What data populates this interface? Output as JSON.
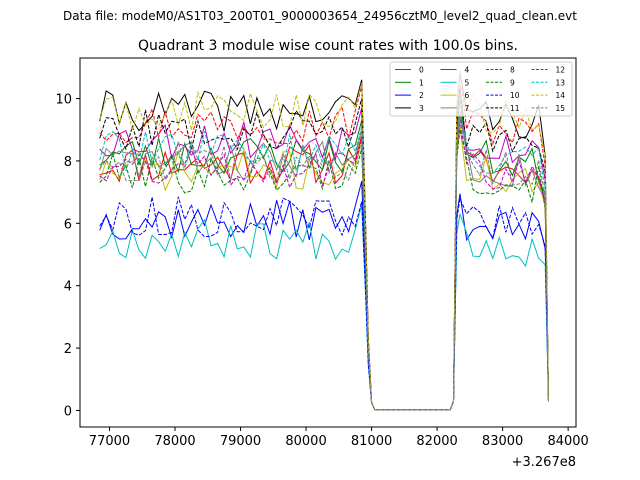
{
  "figure": {
    "supertitle": "Data file: modeM0/AS1T03_200T01_9000003654_24956cztM0_level2_quad_clean.evt"
  },
  "chart_data": {
    "type": "line",
    "title": "Quadrant 3 module wise count rates with 100.0s bins.",
    "xlabel": "",
    "ylabel": "",
    "x_offset_label": "+3.267e8",
    "xlim": [
      76550,
      84120
    ],
    "ylim": [
      -0.53,
      11.3
    ],
    "xticks": [
      77000,
      78000,
      79000,
      80000,
      81000,
      82000,
      83000,
      84000
    ],
    "xtick_labels": [
      "77000",
      "78000",
      "79000",
      "80000",
      "81000",
      "82000",
      "83000",
      "84000"
    ],
    "yticks": [
      0,
      2,
      4,
      6,
      8,
      10
    ],
    "ytick_labels": [
      "0",
      "2",
      "4",
      "6",
      "8",
      "10"
    ],
    "grid": false,
    "legend_position": "top-right",
    "legend_columns": 4,
    "x_pre_gap": [
      76850,
      76950,
      77050,
      77150,
      77250,
      77350,
      77450,
      77550,
      77650,
      77750,
      77850,
      77950,
      78050,
      78150,
      78250,
      78350,
      78450,
      78550,
      78650,
      78750,
      78850,
      78950,
      79050,
      79150,
      79250,
      79350,
      79450,
      79550,
      79650,
      79750,
      79850,
      79950,
      80050,
      80150,
      80250,
      80350,
      80450,
      80550,
      80650,
      80750,
      80850
    ],
    "x_gap": [
      80910,
      80950,
      81000,
      81050,
      81100,
      82200,
      82250,
      82300
    ],
    "x_post_gap": [
      82350,
      82450,
      82550,
      82650,
      82750,
      82850,
      82950,
      83050,
      83150,
      83250,
      83350,
      83450,
      83550,
      83650,
      83700
    ],
    "series": [
      {
        "name": "0",
        "color": "#ff0000",
        "dash": "solid",
        "level": 7.9,
        "seed": 11,
        "peak_pre": 8.8,
        "peak_post": 9.6
      },
      {
        "name": "1",
        "color": "#008000",
        "dash": "solid",
        "level": 8.2,
        "seed": 23,
        "peak_pre": 9.3,
        "peak_post": 10.0
      },
      {
        "name": "2",
        "color": "#0000ff",
        "dash": "solid",
        "level": 6.1,
        "seed": 37,
        "peak_pre": 7.35,
        "peak_post": 6.95
      },
      {
        "name": "3",
        "color": "#000000",
        "dash": "solid",
        "level": 9.6,
        "seed": 41,
        "peak_pre": 10.6,
        "peak_post": 10.8
      },
      {
        "name": "4",
        "color": "#bf00bf",
        "dash": "solid",
        "level": 8.7,
        "seed": 53,
        "peak_pre": 9.7,
        "peak_post": 10.4
      },
      {
        "name": "5",
        "color": "#00bfbf",
        "dash": "solid",
        "level": 5.5,
        "seed": 67,
        "peak_pre": 6.6,
        "peak_post": 6.3
      },
      {
        "name": "6",
        "color": "#bfbf00",
        "dash": "solid",
        "level": 7.7,
        "seed": 71,
        "peak_pre": 8.6,
        "peak_post": 9.1
      },
      {
        "name": "7",
        "color": "#808080",
        "dash": "solid",
        "level": 8.0,
        "seed": 83,
        "peak_pre": 9.0,
        "peak_post": 9.4
      },
      {
        "name": "8",
        "color": "#ff0000",
        "dash": "dashed",
        "level": 9.2,
        "seed": 97,
        "peak_pre": 10.4,
        "peak_post": 10.9
      },
      {
        "name": "9",
        "color": "#008000",
        "dash": "dashed",
        "level": 7.6,
        "seed": 101,
        "peak_pre": 8.4,
        "peak_post": 9.0
      },
      {
        "name": "10",
        "color": "#0000ff",
        "dash": "dashed",
        "level": 6.2,
        "seed": 113,
        "peak_pre": 6.7,
        "peak_post": 6.8
      },
      {
        "name": "11",
        "color": "#000000",
        "dash": "dashed",
        "level": 9.0,
        "seed": 127,
        "peak_pre": 10.0,
        "peak_post": 10.3
      },
      {
        "name": "12",
        "color": "#bf00bf",
        "dash": "dashed",
        "level": 7.8,
        "seed": 131,
        "peak_pre": 8.7,
        "peak_post": 9.3
      },
      {
        "name": "13",
        "color": "#00bfbf",
        "dash": "dashed",
        "level": 8.3,
        "seed": 139,
        "peak_pre": 9.1,
        "peak_post": 9.6
      },
      {
        "name": "14",
        "color": "#bfbf00",
        "dash": "dashed",
        "level": 9.6,
        "seed": 149,
        "peak_pre": 10.5,
        "peak_post": 10.9
      },
      {
        "name": "15",
        "color": "#808080",
        "dash": "dashed",
        "level": 8.0,
        "seed": 157,
        "peak_pre": 8.9,
        "peak_post": 9.4
      }
    ]
  }
}
